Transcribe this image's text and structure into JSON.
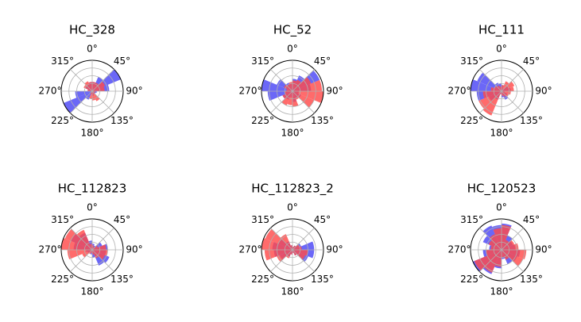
{
  "figure": {
    "angle_tick_labels": [
      "0°",
      "45°",
      "90°",
      "135°",
      "180°",
      "225°",
      "270°",
      "315°"
    ],
    "colors": {
      "series_a": "#4a46f5",
      "series_b": "#ff4a4a",
      "overlap": "#b32a6a"
    }
  },
  "chart_data": [
    {
      "type": "polar-bar",
      "title": "HC_328",
      "rlim": [
        0,
        1
      ],
      "rgrid": [
        0.25,
        0.5,
        0.75,
        1
      ],
      "theta_direction": "clockwise",
      "theta_zero": "north",
      "bins_deg": [
        0,
        22.5,
        45,
        67.5,
        90,
        112.5,
        135,
        157.5,
        180,
        202.5,
        225,
        247.5,
        270,
        292.5,
        315,
        337.5
      ],
      "series": [
        {
          "color": "#4a46f5",
          "values": [
            0.3,
            0.5,
            1.0,
            0.55,
            0.15,
            0.12,
            0.1,
            0.15,
            0.1,
            0.3,
            1.0,
            0.55,
            0.15,
            0.25,
            0.25,
            0.3
          ]
        },
        {
          "color": "#ff4a4a",
          "values": [
            0.3,
            0.3,
            0.45,
            0.4,
            0.1,
            0.1,
            0.35,
            0.3,
            0.25,
            0.1,
            0.05,
            0.05,
            0.15,
            0.3,
            0.35,
            0.3
          ]
        }
      ]
    },
    {
      "type": "polar-bar",
      "title": "HC_52",
      "rlim": [
        0,
        1
      ],
      "rgrid": [
        0.25,
        0.5,
        0.75,
        1
      ],
      "theta_direction": "clockwise",
      "theta_zero": "north",
      "bins_deg": [
        0,
        22.5,
        45,
        67.5,
        90,
        112.5,
        135,
        157.5,
        180,
        202.5,
        225,
        247.5,
        270,
        292.5,
        315,
        337.5
      ],
      "series": [
        {
          "color": "#4a46f5",
          "values": [
            0.4,
            0.55,
            0.95,
            0.6,
            0.2,
            0.3,
            0.25,
            0.35,
            0.2,
            0.3,
            0.35,
            0.8,
            1.0,
            0.55,
            0.3,
            0.25
          ]
        },
        {
          "color": "#ff4a4a",
          "values": [
            0.35,
            0.4,
            0.65,
            0.95,
            1.0,
            0.75,
            0.3,
            0.5,
            0.45,
            0.5,
            0.35,
            0.25,
            0.2,
            0.3,
            0.25,
            0.3
          ]
        }
      ]
    },
    {
      "type": "polar-bar",
      "title": "HC_111",
      "rlim": [
        0,
        1
      ],
      "rgrid": [
        0.25,
        0.5,
        0.75,
        1
      ],
      "theta_direction": "clockwise",
      "theta_zero": "north",
      "bins_deg": [
        0,
        22.5,
        45,
        67.5,
        90,
        112.5,
        135,
        157.5,
        180,
        202.5,
        225,
        247.5,
        270,
        292.5,
        315,
        337.5
      ],
      "series": [
        {
          "color": "#4a46f5",
          "values": [
            0.2,
            0.1,
            0.25,
            0.3,
            0.1,
            0.2,
            0.3,
            0.2,
            0.1,
            0.3,
            0.45,
            0.8,
            1.0,
            0.85,
            0.3,
            0.25
          ]
        },
        {
          "color": "#ff4a4a",
          "values": [
            0.2,
            0.35,
            0.45,
            0.4,
            0.3,
            0.25,
            0.2,
            0.15,
            0.1,
            0.85,
            0.8,
            0.6,
            0.35,
            0.25,
            0.2,
            0.15
          ]
        }
      ]
    },
    {
      "type": "polar-bar",
      "title": "HC_112823",
      "rlim": [
        0,
        1
      ],
      "rgrid": [
        0.25,
        0.5,
        0.75,
        1
      ],
      "theta_direction": "clockwise",
      "theta_zero": "north",
      "bins_deg": [
        0,
        22.5,
        45,
        67.5,
        90,
        112.5,
        135,
        157.5,
        180,
        202.5,
        225,
        247.5,
        270,
        292.5,
        315,
        337.5
      ],
      "series": [
        {
          "color": "#4a46f5",
          "values": [
            0.2,
            0.15,
            0.35,
            0.5,
            0.45,
            0.6,
            0.55,
            0.25,
            0.15,
            0.1,
            0.15,
            0.2,
            0.6,
            0.75,
            0.6,
            0.3
          ]
        },
        {
          "color": "#ff4a4a",
          "values": [
            0.15,
            0.1,
            0.2,
            0.45,
            0.5,
            0.45,
            0.3,
            0.15,
            0.1,
            0.15,
            0.35,
            0.8,
            1.0,
            0.95,
            0.7,
            0.2
          ]
        }
      ]
    },
    {
      "type": "polar-bar",
      "title": "HC_112823_2",
      "rlim": [
        0,
        1
      ],
      "rgrid": [
        0.25,
        0.5,
        0.75,
        1
      ],
      "theta_direction": "clockwise",
      "theta_zero": "north",
      "bins_deg": [
        0,
        22.5,
        45,
        67.5,
        90,
        112.5,
        135,
        157.5,
        180,
        202.5,
        225,
        247.5,
        270,
        292.5,
        315,
        337.5
      ],
      "series": [
        {
          "color": "#4a46f5",
          "values": [
            0.1,
            0.15,
            0.3,
            0.7,
            0.7,
            0.55,
            0.2,
            0.1,
            0.15,
            0.25,
            0.45,
            0.6,
            0.65,
            0.5,
            0.3,
            0.15
          ]
        },
        {
          "color": "#ff4a4a",
          "values": [
            0.1,
            0.15,
            0.25,
            0.3,
            0.5,
            0.45,
            0.2,
            0.1,
            0.15,
            0.3,
            0.55,
            0.9,
            1.0,
            0.95,
            0.55,
            0.15
          ]
        }
      ]
    },
    {
      "type": "polar-bar",
      "title": "HC_120523",
      "rlim": [
        0,
        1
      ],
      "rgrid": [
        0.25,
        0.5,
        0.75,
        1
      ],
      "theta_direction": "clockwise",
      "theta_zero": "north",
      "bins_deg": [
        0,
        22.5,
        45,
        67.5,
        90,
        112.5,
        135,
        157.5,
        180,
        202.5,
        225,
        247.5,
        270,
        292.5,
        315,
        337.5
      ],
      "series": [
        {
          "color": "#4a46f5",
          "values": [
            0.85,
            0.5,
            0.4,
            0.45,
            0.6,
            0.55,
            0.5,
            0.3,
            0.6,
            0.85,
            1.0,
            0.6,
            0.4,
            0.65,
            0.85,
            0.8
          ]
        },
        {
          "color": "#ff4a4a",
          "values": [
            0.8,
            0.35,
            0.45,
            0.55,
            0.8,
            0.75,
            0.35,
            0.25,
            0.55,
            0.8,
            0.95,
            0.5,
            0.35,
            0.45,
            0.55,
            0.7
          ]
        }
      ]
    }
  ]
}
